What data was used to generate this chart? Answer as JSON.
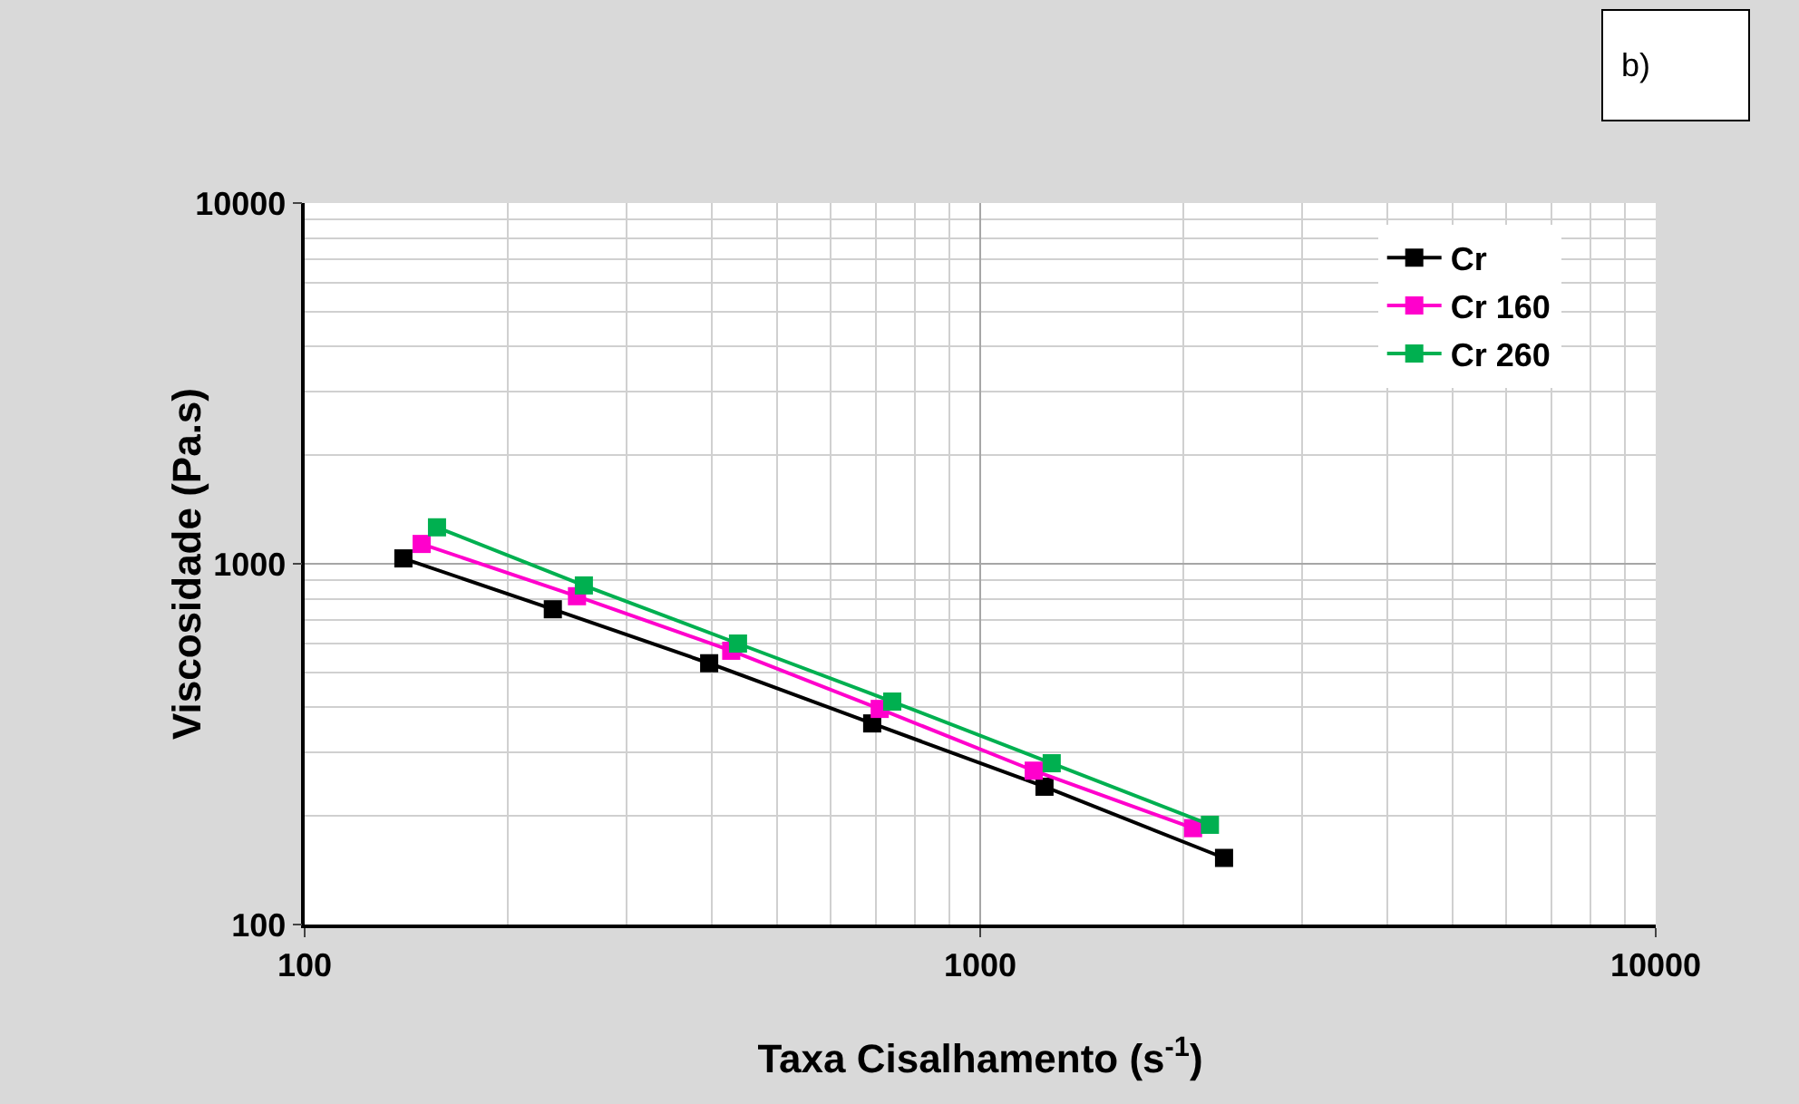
{
  "chart_data": {
    "type": "line",
    "xlabel": "Taxa Cisalhamento (s$^{-1}$)",
    "ylabel": "Viscosidade (Pa.s)",
    "annotations": [
      "b)"
    ],
    "log": "xy",
    "grid": true,
    "legend": "top right",
    "marker": "square",
    "line_style": "solid",
    "xlim": [
      100,
      10000
    ],
    "xticks": [
      100,
      1000,
      10000
    ],
    "ylim": [
      100,
      10000
    ],
    "yticks": [
      100,
      1000,
      10000
    ],
    "series": [
      {
        "name": "Cr",
        "color": "#000000",
        "x": [
          140,
          233,
          397,
          692,
          1245,
          2296
        ],
        "values": [
          1035,
          748,
          530,
          361,
          241,
          153
        ]
      },
      {
        "name": "Cr 160",
        "color": "#ff00cc",
        "x": [
          149,
          253,
          428,
          710,
          1200,
          2066
        ],
        "values": [
          1135,
          813,
          574,
          396,
          267,
          185
        ]
      },
      {
        "name": "Cr 260",
        "color": "#00b050",
        "x": [
          157,
          259,
          438,
          741,
          1276,
          2188
        ],
        "values": [
          1262,
          871,
          601,
          415,
          280,
          189
        ]
      }
    ]
  }
}
